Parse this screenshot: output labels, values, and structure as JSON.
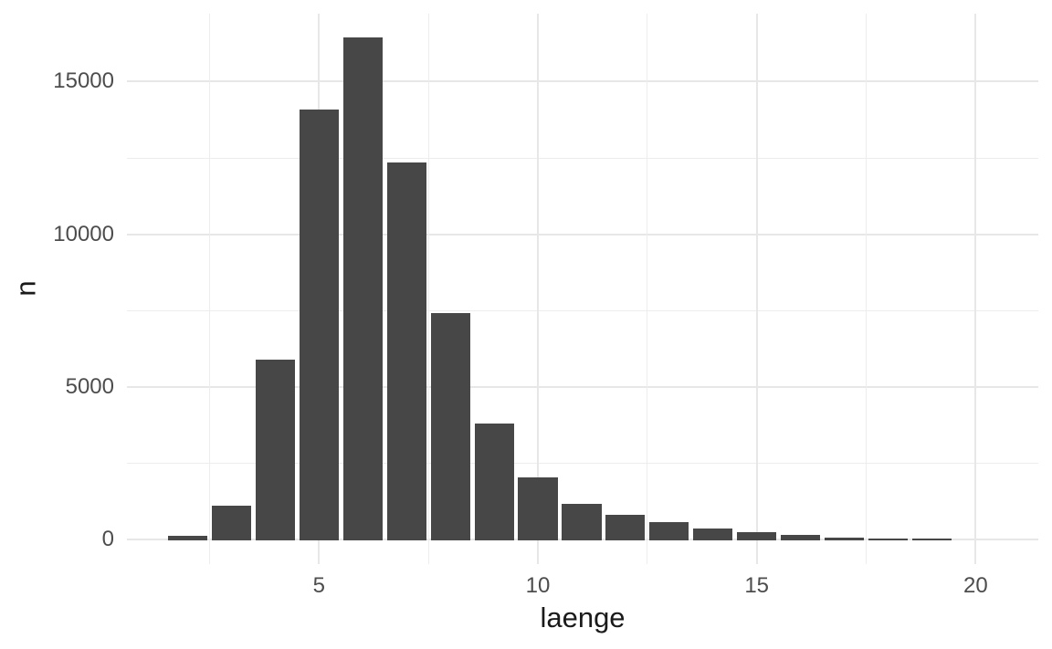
{
  "chart_data": {
    "type": "bar",
    "title": "",
    "xlabel": "laenge",
    "ylabel": "n",
    "categories": [
      2,
      3,
      4,
      5,
      6,
      7,
      8,
      9,
      10,
      11,
      12,
      13,
      14,
      15,
      16,
      17,
      18,
      19
    ],
    "values": [
      100,
      1100,
      5900,
      14100,
      16450,
      12350,
      7400,
      3800,
      2030,
      1150,
      800,
      560,
      350,
      220,
      140,
      60,
      30,
      30
    ],
    "bar_width": 0.9,
    "x_ticks": [
      {
        "value": 5,
        "label": "5"
      },
      {
        "value": 10,
        "label": "10"
      },
      {
        "value": 15,
        "label": "15"
      },
      {
        "value": 20,
        "label": "20"
      }
    ],
    "y_ticks": [
      {
        "value": 0,
        "label": "0"
      },
      {
        "value": 5000,
        "label": "5000"
      },
      {
        "value": 10000,
        "label": "10000"
      },
      {
        "value": 15000,
        "label": "15000"
      }
    ],
    "x_minor_gridlines": [
      2.5,
      7.5,
      12.5,
      17.5
    ],
    "y_minor_gridlines": [
      2500,
      7500,
      12500
    ],
    "xlim": [
      0.612,
      21.432
    ],
    "ylim": [
      -813,
      17227
    ],
    "grid": "on",
    "legend": "none",
    "colors": {
      "bar_fill": "#474747",
      "grid_major": "#e7e7e7",
      "grid_minor": "#ededed",
      "tick_label": "#4d4d4d",
      "axis_title": "#1a1a1a",
      "background": "#ffffff"
    }
  }
}
